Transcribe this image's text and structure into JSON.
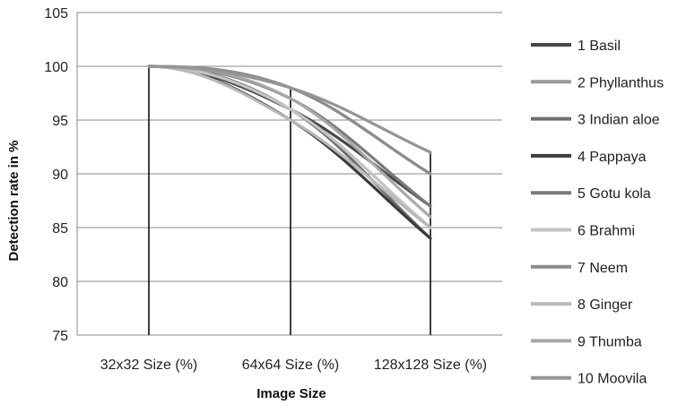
{
  "chart_data": {
    "type": "line",
    "xlabel": "Image Size",
    "ylabel": "Detection rate in %",
    "categories": [
      "32x32 Size (%)",
      "64x64 Size (%)",
      "128x128 Size (%)"
    ],
    "ylim": [
      75,
      105
    ],
    "yticks": [
      "75",
      "80",
      "85",
      "90",
      "95",
      "100",
      "105"
    ],
    "grid": "horizontal",
    "legend_position": "right",
    "series": [
      {
        "name": "1 Basil",
        "values": [
          100,
          96,
          87
        ],
        "color": "#474747"
      },
      {
        "name": "2 Phyllanthus",
        "values": [
          100,
          98,
          90
        ],
        "color": "#9a9a9a"
      },
      {
        "name": "3 Indian aloe",
        "values": [
          100,
          96,
          84
        ],
        "color": "#6f6f6f"
      },
      {
        "name": "4 Pappaya",
        "values": [
          100,
          95,
          84
        ],
        "color": "#3b3b3b"
      },
      {
        "name": "5 Gotu kola",
        "values": [
          100,
          97,
          87
        ],
        "color": "#7a7a7a"
      },
      {
        "name": "6 Brahmi",
        "values": [
          100,
          96,
          85
        ],
        "color": "#c3c3c3"
      },
      {
        "name": "7 Neem",
        "values": [
          100,
          98,
          90
        ],
        "color": "#8c8c8c"
      },
      {
        "name": "8 Ginger",
        "values": [
          100,
          95,
          85
        ],
        "color": "#b9b9b9"
      },
      {
        "name": "9 Thumba",
        "values": [
          100,
          97,
          86
        ],
        "color": "#a8a8a8"
      },
      {
        "name": "10 Moovila",
        "values": [
          100,
          98,
          92
        ],
        "color": "#959595"
      }
    ]
  }
}
